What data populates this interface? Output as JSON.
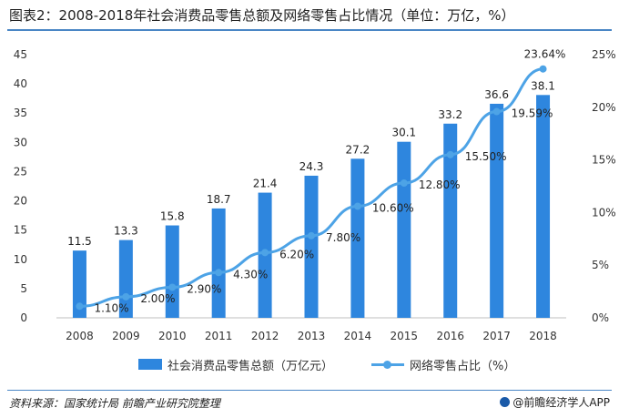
{
  "title": "图表2：2008-2018年社会消费品零售总额及网络零售占比情况（单位：万亿，%）",
  "source": "资料来源：国家统计局  前瞻产业研究院整理",
  "brand": "@前瞻经济学人APP",
  "colors": {
    "bar": "#2e86de",
    "line": "#4da3e6",
    "rule": "#4a86c5"
  },
  "chart_data": {
    "type": "bar",
    "categories": [
      "2008",
      "2009",
      "2010",
      "2011",
      "2012",
      "2013",
      "2014",
      "2015",
      "2016",
      "2017",
      "2018"
    ],
    "series": [
      {
        "name": "社会消费品零售总额（万亿元）",
        "type": "bar",
        "axis": "left",
        "values": [
          11.5,
          13.3,
          15.8,
          18.7,
          21.4,
          24.3,
          27.2,
          30.1,
          33.2,
          36.6,
          38.1
        ],
        "labels": [
          "11.5",
          "13.3",
          "15.8",
          "18.7",
          "21.4",
          "24.3",
          "27.2",
          "30.1",
          "33.2",
          "36.6",
          "38.1"
        ]
      },
      {
        "name": "网络零售占比（%）",
        "type": "line",
        "axis": "right",
        "values": [
          1.1,
          2.0,
          2.9,
          4.3,
          6.2,
          7.8,
          10.6,
          12.8,
          15.5,
          19.59,
          23.64
        ],
        "labels": [
          "1.10%",
          "2.00%",
          "2.90%",
          "4.30%",
          "6.20%",
          "7.80%",
          "10.60%",
          "12.80%",
          "15.50%",
          "19.59%",
          "23.64%"
        ]
      }
    ],
    "y_left": {
      "min": 0,
      "max": 45,
      "step": 5,
      "ticks": [
        "0",
        "5",
        "10",
        "15",
        "20",
        "25",
        "30",
        "35",
        "40",
        "45"
      ]
    },
    "y_right": {
      "min": 0,
      "max": 25,
      "step": 5,
      "ticks": [
        "0%",
        "5%",
        "10%",
        "15%",
        "20%",
        "25%"
      ]
    },
    "grid": false,
    "legend": "bottom"
  }
}
